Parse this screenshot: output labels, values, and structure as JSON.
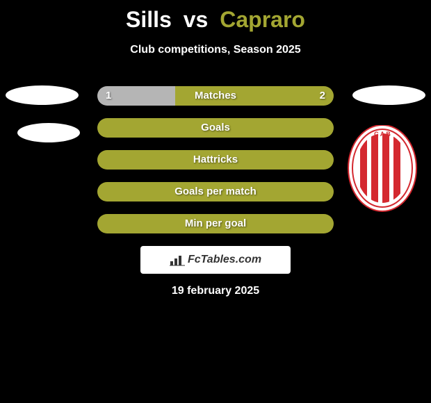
{
  "title": {
    "player1": "Sills",
    "vs": "vs",
    "player2": "Capraro",
    "player1_color": "#ffffff",
    "player2_color": "#a3a632"
  },
  "subtitle": "Club competitions, Season 2025",
  "colors": {
    "background": "#000000",
    "bar_left": "#b5b5b5",
    "bar_right": "#a3a632",
    "text": "#ffffff"
  },
  "stats": [
    {
      "label": "Matches",
      "left_value": "1",
      "right_value": "2",
      "left_pct": 33,
      "right_pct": 67
    },
    {
      "label": "Goals",
      "left_value": "",
      "right_value": "",
      "left_pct": 0,
      "right_pct": 100
    },
    {
      "label": "Hattricks",
      "left_value": "",
      "right_value": "",
      "left_pct": 0,
      "right_pct": 100
    },
    {
      "label": "Goals per match",
      "left_value": "",
      "right_value": "",
      "left_pct": 0,
      "right_pct": 100
    },
    {
      "label": "Min per goal",
      "left_value": "",
      "right_value": "",
      "left_pct": 0,
      "right_pct": 100
    }
  ],
  "logo_text": "FcTables.com",
  "date": "19 february 2025",
  "badge": {
    "stripe_color": "#d4282f",
    "background": "#ffffff"
  }
}
